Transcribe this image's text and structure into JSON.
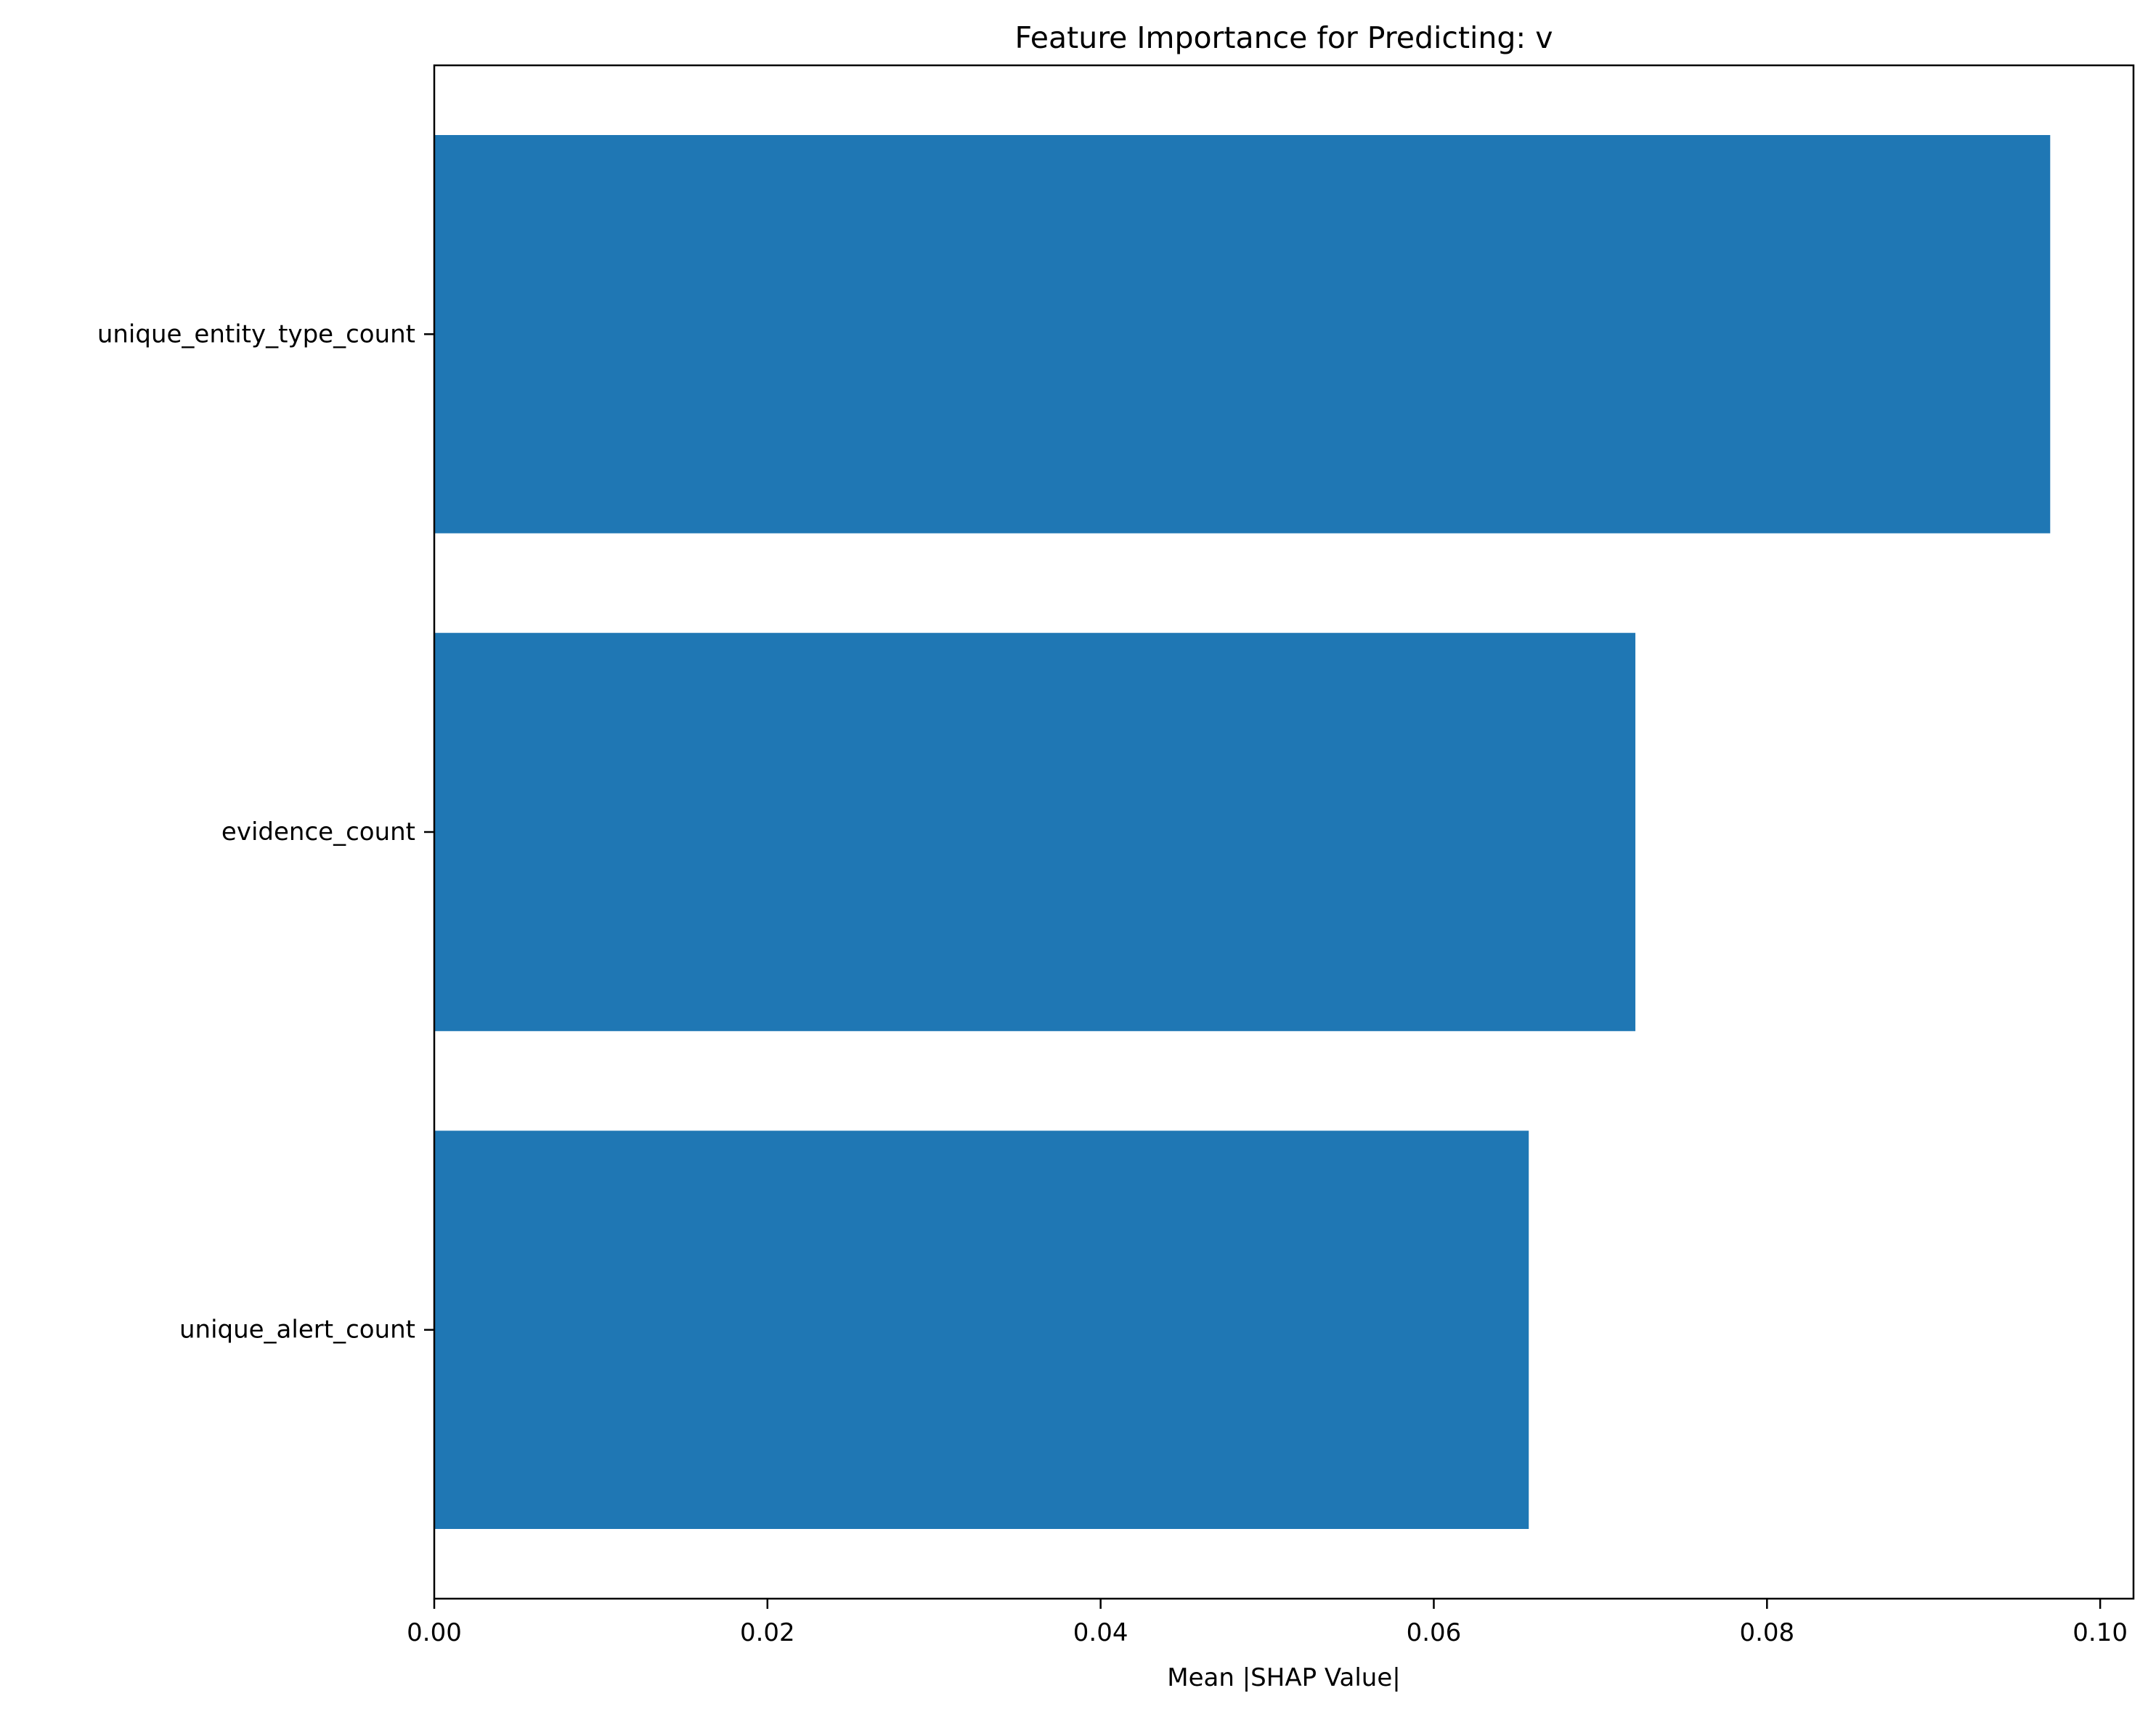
{
  "chart_data": {
    "type": "bar",
    "orientation": "horizontal",
    "title": "Feature Importance for Predicting: v",
    "xlabel": "Mean |SHAP Value|",
    "ylabel": "",
    "categories": [
      "unique_alert_count",
      "evidence_count",
      "unique_entity_type_count"
    ],
    "values": [
      0.0657,
      0.0721,
      0.097
    ],
    "xlim": [
      0.0,
      0.102
    ],
    "xticks": [
      0.0,
      0.02,
      0.04,
      0.06,
      0.08,
      0.1
    ],
    "xtick_labels": [
      "0.00",
      "0.02",
      "0.04",
      "0.06",
      "0.08",
      "0.10"
    ],
    "bar_color": "#1f77b4",
    "grid": false,
    "legend": "none"
  }
}
